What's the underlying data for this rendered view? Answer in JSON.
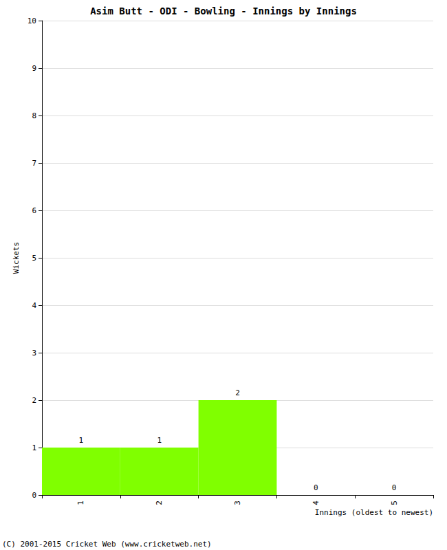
{
  "chart_data": {
    "type": "bar",
    "title": "Asim Butt - ODI - Bowling - Innings by Innings",
    "x_label": "Innings (oldest to newest)",
    "y_label": "Wickets",
    "categories": [
      "1",
      "2",
      "3",
      "4",
      "5"
    ],
    "values": [
      1,
      1,
      2,
      0,
      0
    ],
    "color": "#80ff00",
    "ylim": [
      0,
      10
    ],
    "yticks": [
      0,
      1,
      2,
      3,
      4,
      5,
      6,
      7,
      8,
      9,
      10
    ],
    "grid": true,
    "data_labels": true,
    "annotations": [
      "(C) 2001-2015 Cricket Web (www.cricketweb.net)"
    ]
  }
}
